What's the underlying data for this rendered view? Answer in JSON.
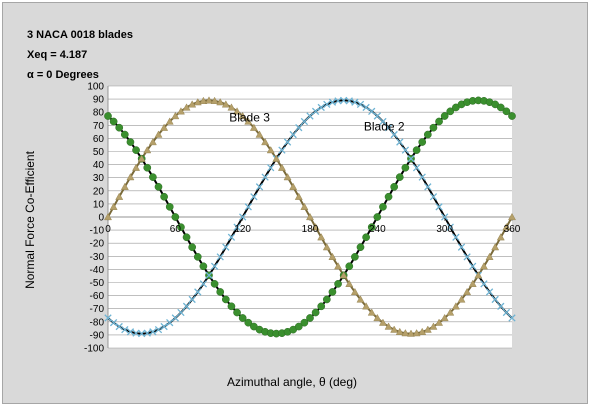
{
  "chart_data": {
    "type": "scatter",
    "annotations": [
      "3 NACA 0018 blades",
      "Xeq = 4.187",
      "α = 0 Degrees"
    ],
    "xlabel": "Azimuthal angle, θ (deg)",
    "ylabel": "Normal Force Co-Efficient",
    "xlim": [
      0,
      360
    ],
    "ylim": [
      -100,
      100
    ],
    "xticks": [
      0,
      60,
      120,
      180,
      240,
      300,
      360
    ],
    "yticks": [
      100,
      90,
      80,
      70,
      60,
      50,
      40,
      30,
      20,
      10,
      0,
      -10,
      -20,
      -30,
      -40,
      -50,
      -60,
      -70,
      -80,
      -90,
      -100
    ],
    "grid": true,
    "curve_labels": [
      {
        "text": "Blade 3",
        "x": 108,
        "y": 73
      },
      {
        "text": "Blade 2",
        "x": 228,
        "y": 66
      }
    ],
    "series": [
      {
        "curve": "sinusoid",
        "amplitude": 89,
        "phase_deg": 120,
        "line_color": "#000000",
        "marker": "circle",
        "marker_color": "#3a8f2e",
        "marker_count": 73
      },
      {
        "curve": "sinusoid",
        "amplitude": 89,
        "phase_deg": 240,
        "line_color": "#000000",
        "marker": "x",
        "marker_color": "#6fb4d4",
        "marker_count": 73
      },
      {
        "curve": "sinusoid",
        "amplitude": 89,
        "phase_deg": 0,
        "line_color": "#7a6a3a",
        "marker": "triangle",
        "marker_color": "#b5a06a",
        "marker_count": 73
      }
    ],
    "colors": {
      "plot_background": "#ffffff",
      "gridline": "#999999",
      "frame": "#d9d9d9"
    }
  }
}
